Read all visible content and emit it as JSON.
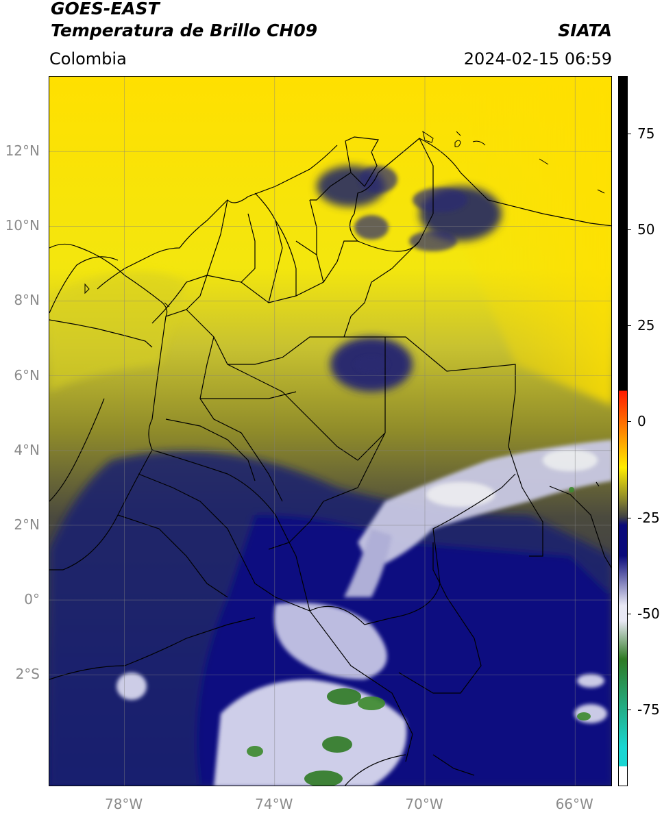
{
  "header": {
    "satellite": "GOES-EAST",
    "product": "Temperatura de Brillo CH09",
    "region": "Colombia",
    "source": "SIATA",
    "datetime": "2024-02-15 06:59"
  },
  "map": {
    "lat_labels": [
      "12°N",
      "10°N",
      "8°N",
      "6°N",
      "4°N",
      "2°N",
      "0°",
      "2°S"
    ],
    "lat_values": [
      12,
      10,
      8,
      6,
      4,
      2,
      0,
      -2
    ],
    "lon_labels": [
      "78°W",
      "74°W",
      "70°W",
      "66°W"
    ],
    "lon_values": [
      -78,
      -74,
      -70,
      -66
    ],
    "lon_range": [
      -80,
      -65
    ],
    "lat_range": [
      -5,
      14
    ]
  },
  "colorbar": {
    "tick_labels": [
      "75",
      "50",
      "25",
      "0",
      "-25",
      "-50",
      "-75"
    ],
    "tick_values": [
      75,
      50,
      25,
      0,
      -25,
      -50,
      -75
    ],
    "range": [
      -95,
      90
    ],
    "colors": {
      "black": "#000000",
      "red": "#ff1a00",
      "orange": "#ff8c00",
      "yellow": "#ffec00",
      "olive": "#8f8b2a",
      "gray": "#3e3f44",
      "navy": "#0a0a7a",
      "light": "#e8e8f4",
      "green": "#2f7a24",
      "cyan": "#1ad6d2"
    }
  }
}
